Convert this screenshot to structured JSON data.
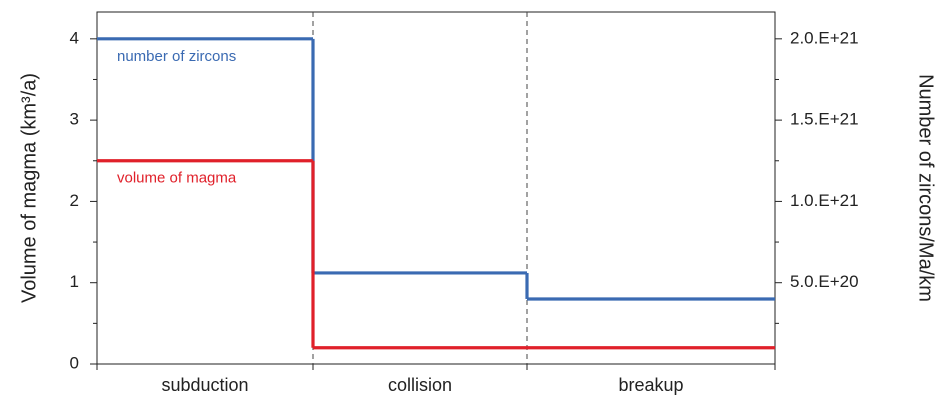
{
  "chart_data": {
    "type": "step",
    "y_label": "Volume of magma (km³/a)",
    "y2_label": "Number of zircons/Ma/km",
    "categories": [
      "subduction",
      "collision",
      "breakup"
    ],
    "series": [
      {
        "name": "number of zircons",
        "color": "#3a6ab2",
        "axis": "y2",
        "values": [
          2e+21,
          5.6e+20,
          4e+20
        ]
      },
      {
        "name": "volume of magma",
        "color": "#e0202a",
        "values": [
          2.5,
          0.2,
          0.2
        ]
      }
    ],
    "ylim": [
      0,
      4.33
    ],
    "yticks": [
      0,
      1,
      2,
      3,
      4
    ],
    "yminor_ticks": [
      0.5,
      1.5,
      2.5,
      3.5
    ],
    "y2lim": [
      0,
      2.165e+21
    ],
    "y2ticks": [
      {
        "value": 5e+20,
        "label": "5.0.E+20"
      },
      {
        "value": 1e+21,
        "label": "1.0.E+21"
      },
      {
        "value": 1.5e+21,
        "label": "1.5.E+21"
      },
      {
        "value": 2e+21,
        "label": "2.0.E+21"
      }
    ],
    "y2minor_ticks": [
      2.5e+20,
      7.5e+20,
      1.25e+21,
      1.75e+21
    ]
  }
}
